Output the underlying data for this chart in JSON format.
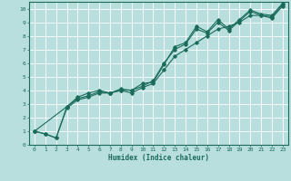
{
  "title": "",
  "xlabel": "Humidex (Indice chaleur)",
  "bg_color": "#b8dede",
  "grid_color": "#ffffff",
  "line_color": "#1a6b5a",
  "xlim": [
    -0.5,
    23.5
  ],
  "ylim": [
    0,
    10.5
  ],
  "xticks": [
    0,
    1,
    2,
    3,
    4,
    5,
    6,
    7,
    8,
    9,
    10,
    11,
    12,
    13,
    14,
    15,
    16,
    17,
    18,
    19,
    20,
    21,
    22,
    23
  ],
  "yticks": [
    0,
    1,
    2,
    3,
    4,
    5,
    6,
    7,
    8,
    9,
    10
  ],
  "series1_x": [
    0,
    1,
    2,
    3,
    4,
    5,
    6,
    7,
    8,
    9,
    10,
    11,
    12,
    13,
    14,
    15,
    16,
    17,
    18,
    19,
    20,
    21,
    22,
    23
  ],
  "series1_y": [
    1.0,
    0.8,
    0.5,
    2.8,
    3.5,
    3.8,
    4.0,
    3.8,
    4.0,
    4.0,
    4.5,
    4.6,
    5.9,
    7.2,
    7.5,
    8.7,
    8.3,
    9.2,
    8.5,
    9.2,
    9.9,
    9.6,
    9.5,
    10.4
  ],
  "series2_x": [
    0,
    1,
    2,
    3,
    4,
    5,
    6,
    7,
    8,
    9,
    10,
    11,
    12,
    13,
    14,
    15,
    16,
    17,
    18,
    19,
    20,
    21,
    22,
    23
  ],
  "series2_y": [
    1.0,
    0.8,
    0.5,
    2.7,
    3.3,
    3.5,
    3.8,
    3.8,
    4.0,
    3.8,
    4.2,
    4.5,
    5.5,
    6.5,
    7.0,
    7.5,
    8.0,
    8.5,
    8.7,
    9.0,
    9.5,
    9.5,
    9.3,
    10.2
  ],
  "series3_x": [
    0,
    3,
    4,
    5,
    6,
    7,
    8,
    9,
    10,
    11,
    12,
    13,
    14,
    15,
    16,
    17,
    18,
    19,
    20,
    21,
    22,
    23
  ],
  "series3_y": [
    1.0,
    2.8,
    3.4,
    3.6,
    3.9,
    3.8,
    4.1,
    4.0,
    4.3,
    4.7,
    6.0,
    7.0,
    7.4,
    8.5,
    8.2,
    9.0,
    8.4,
    9.1,
    9.8,
    9.5,
    9.4,
    10.3
  ]
}
